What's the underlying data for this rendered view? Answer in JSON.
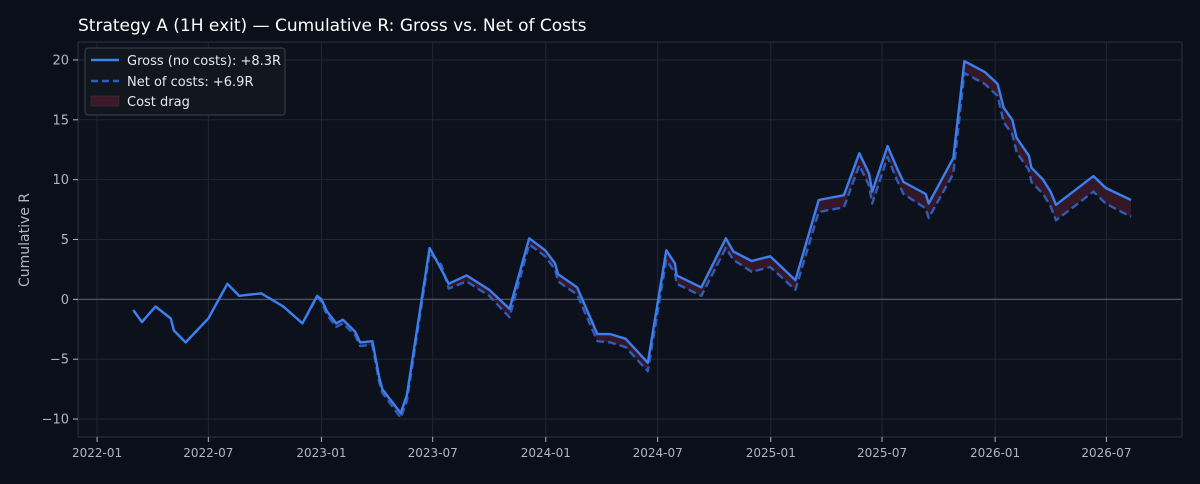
{
  "colors": {
    "background": "#0b0f1a",
    "plot_background": "#0c111c",
    "grid": "#1f2635",
    "spine": "#2b3242",
    "text": "#ffffff",
    "tick_text": "#aeb6c4",
    "gross": "#3b7ff0",
    "net": "#2f5cb8",
    "cost_fill": "#3a1a2a",
    "zero_line": "#4b5567"
  },
  "chart_data": {
    "type": "line",
    "title": "Strategy A (1H exit) — Cumulative R: Gross vs. Net of Costs",
    "xlabel": "",
    "ylabel": "Cumulative R",
    "xlim": [
      "2021-12-01",
      "2026-11-01"
    ],
    "ylim": [
      -11.5,
      21.5
    ],
    "x_ticks": [
      "2022-01-01",
      "2022-07-01",
      "2023-01-01",
      "2023-07-01",
      "2024-01-01",
      "2024-07-01",
      "2025-01-01",
      "2025-07-01",
      "2026-01-01",
      "2026-07-01"
    ],
    "x_tick_labels": [
      "2022-01",
      "2022-07",
      "2023-01",
      "2023-07",
      "2024-01",
      "2024-07",
      "2025-01",
      "2025-07",
      "2026-01",
      "2026-07"
    ],
    "y_ticks": [
      -10,
      -5,
      0,
      5,
      10,
      15,
      20
    ],
    "y_tick_labels": [
      "−10",
      "−5",
      "0",
      "5",
      "10",
      "15",
      "20"
    ],
    "grid": true,
    "legend_position": "top-left",
    "legend": {
      "gross": "Gross (no costs): +8.3R",
      "net": "Net of costs: +6.9R",
      "cost": "Cost drag"
    },
    "series": [
      {
        "name": "Gross (no costs): +8.3R",
        "style": "solid",
        "points": [
          [
            "2022-03-01",
            -0.9
          ],
          [
            "2022-03-15",
            -1.9
          ],
          [
            "2022-04-06",
            -0.6
          ],
          [
            "2022-05-01",
            -1.6
          ],
          [
            "2022-05-06",
            -2.6
          ],
          [
            "2022-05-25",
            -3.6
          ],
          [
            "2022-07-01",
            -1.6
          ],
          [
            "2022-08-01",
            1.3
          ],
          [
            "2022-08-20",
            0.3
          ],
          [
            "2022-09-25",
            0.5
          ],
          [
            "2022-10-31",
            -0.6
          ],
          [
            "2022-12-01",
            -2.0
          ],
          [
            "2022-12-25",
            0.3
          ],
          [
            "2023-01-01",
            0.0
          ],
          [
            "2023-01-10",
            -1.0
          ],
          [
            "2023-01-25",
            -2.0
          ],
          [
            "2023-02-05",
            -1.7
          ],
          [
            "2023-02-25",
            -2.7
          ],
          [
            "2023-03-05",
            -3.6
          ],
          [
            "2023-03-25",
            -3.5
          ],
          [
            "2023-04-05",
            -6.5
          ],
          [
            "2023-04-10",
            -7.5
          ],
          [
            "2023-05-10",
            -9.5
          ],
          [
            "2023-05-20",
            -8.0
          ],
          [
            "2023-06-26",
            4.3
          ],
          [
            "2023-07-15",
            2.5
          ],
          [
            "2023-07-27",
            1.3
          ],
          [
            "2023-08-25",
            2.0
          ],
          [
            "2023-10-01",
            0.8
          ],
          [
            "2023-11-03",
            -0.8
          ],
          [
            "2023-12-05",
            5.1
          ],
          [
            "2023-12-31",
            4.1
          ],
          [
            "2024-01-16",
            3.0
          ],
          [
            "2024-01-21",
            2.1
          ],
          [
            "2024-02-21",
            1.0
          ],
          [
            "2024-03-25",
            -2.9
          ],
          [
            "2024-04-15",
            -2.9
          ],
          [
            "2024-05-10",
            -3.3
          ],
          [
            "2024-06-15",
            -5.3
          ],
          [
            "2024-07-15",
            4.1
          ],
          [
            "2024-07-29",
            3.0
          ],
          [
            "2024-08-01",
            2.0
          ],
          [
            "2024-09-10",
            1.0
          ],
          [
            "2024-10-20",
            5.1
          ],
          [
            "2024-11-01",
            4.0
          ],
          [
            "2024-12-01",
            3.2
          ],
          [
            "2024-12-31",
            3.6
          ],
          [
            "2025-02-10",
            1.6
          ],
          [
            "2025-03-20",
            8.3
          ],
          [
            "2025-04-30",
            8.7
          ],
          [
            "2025-05-25",
            12.2
          ],
          [
            "2025-06-10",
            10.5
          ],
          [
            "2025-06-15",
            9.0
          ],
          [
            "2025-07-10",
            12.8
          ],
          [
            "2025-07-25",
            11.0
          ],
          [
            "2025-08-05",
            9.8
          ],
          [
            "2025-09-10",
            8.8
          ],
          [
            "2025-09-15",
            8.0
          ],
          [
            "2025-10-25",
            11.8
          ],
          [
            "2025-11-12",
            19.9
          ],
          [
            "2025-12-15",
            19.0
          ],
          [
            "2026-01-05",
            18.0
          ],
          [
            "2026-01-15",
            16.0
          ],
          [
            "2026-01-29",
            15.0
          ],
          [
            "2026-02-05",
            13.5
          ],
          [
            "2026-02-25",
            12.0
          ],
          [
            "2026-03-01",
            11.0
          ],
          [
            "2026-03-20",
            10.0
          ],
          [
            "2026-04-01",
            9.0
          ],
          [
            "2026-04-10",
            7.9
          ],
          [
            "2026-06-10",
            10.3
          ],
          [
            "2026-06-30",
            9.3
          ],
          [
            "2026-08-10",
            8.3
          ]
        ]
      },
      {
        "name": "Net of costs: +6.9R",
        "style": "dashed",
        "points": [
          [
            "2022-03-01",
            -0.9
          ],
          [
            "2022-03-15",
            -1.9
          ],
          [
            "2022-04-06",
            -0.6
          ],
          [
            "2022-05-01",
            -1.6
          ],
          [
            "2022-05-06",
            -2.6
          ],
          [
            "2022-05-25",
            -3.6
          ],
          [
            "2022-07-01",
            -1.6
          ],
          [
            "2022-08-01",
            1.3
          ],
          [
            "2022-08-20",
            0.3
          ],
          [
            "2022-09-25",
            0.5
          ],
          [
            "2022-10-31",
            -0.6
          ],
          [
            "2022-12-01",
            -2.0
          ],
          [
            "2022-12-25",
            0.2
          ],
          [
            "2023-01-01",
            -0.2
          ],
          [
            "2023-01-10",
            -1.3
          ],
          [
            "2023-01-25",
            -2.3
          ],
          [
            "2023-02-05",
            -2.0
          ],
          [
            "2023-02-25",
            -3.0
          ],
          [
            "2023-03-05",
            -3.9
          ],
          [
            "2023-03-25",
            -3.8
          ],
          [
            "2023-04-05",
            -6.9
          ],
          [
            "2023-04-10",
            -7.8
          ],
          [
            "2023-05-10",
            -9.9
          ],
          [
            "2023-05-20",
            -8.5
          ],
          [
            "2023-06-26",
            3.9
          ],
          [
            "2023-07-15",
            2.9
          ],
          [
            "2023-07-27",
            0.9
          ],
          [
            "2023-08-25",
            1.5
          ],
          [
            "2023-10-01",
            0.3
          ],
          [
            "2023-11-03",
            -1.5
          ],
          [
            "2023-12-05",
            4.6
          ],
          [
            "2023-12-31",
            3.6
          ],
          [
            "2024-01-16",
            2.5
          ],
          [
            "2024-01-21",
            1.5
          ],
          [
            "2024-02-21",
            0.4
          ],
          [
            "2024-03-25",
            -3.5
          ],
          [
            "2024-04-15",
            -3.6
          ],
          [
            "2024-05-10",
            -4.0
          ],
          [
            "2024-06-15",
            -6.0
          ],
          [
            "2024-07-15",
            3.3
          ],
          [
            "2024-07-29",
            2.2
          ],
          [
            "2024-08-01",
            1.3
          ],
          [
            "2024-09-10",
            0.3
          ],
          [
            "2024-10-20",
            4.3
          ],
          [
            "2024-11-01",
            3.3
          ],
          [
            "2024-12-01",
            2.3
          ],
          [
            "2024-12-31",
            2.7
          ],
          [
            "2025-02-10",
            0.8
          ],
          [
            "2025-03-20",
            7.3
          ],
          [
            "2025-04-30",
            7.7
          ],
          [
            "2025-05-25",
            11.2
          ],
          [
            "2025-06-10",
            9.5
          ],
          [
            "2025-06-15",
            8.0
          ],
          [
            "2025-07-10",
            11.9
          ],
          [
            "2025-07-25",
            10.0
          ],
          [
            "2025-08-05",
            8.8
          ],
          [
            "2025-09-10",
            7.6
          ],
          [
            "2025-09-15",
            6.8
          ],
          [
            "2025-10-25",
            10.5
          ],
          [
            "2025-11-12",
            18.9
          ],
          [
            "2025-12-15",
            18.0
          ],
          [
            "2026-01-05",
            17.0
          ],
          [
            "2026-01-15",
            14.8
          ],
          [
            "2026-01-29",
            13.8
          ],
          [
            "2026-02-05",
            12.3
          ],
          [
            "2026-02-25",
            10.8
          ],
          [
            "2026-03-01",
            9.8
          ],
          [
            "2026-03-20",
            8.8
          ],
          [
            "2026-04-01",
            7.8
          ],
          [
            "2026-04-10",
            6.6
          ],
          [
            "2026-06-10",
            9.0
          ],
          [
            "2026-06-30",
            8.0
          ],
          [
            "2026-08-10",
            6.9
          ]
        ]
      }
    ]
  }
}
